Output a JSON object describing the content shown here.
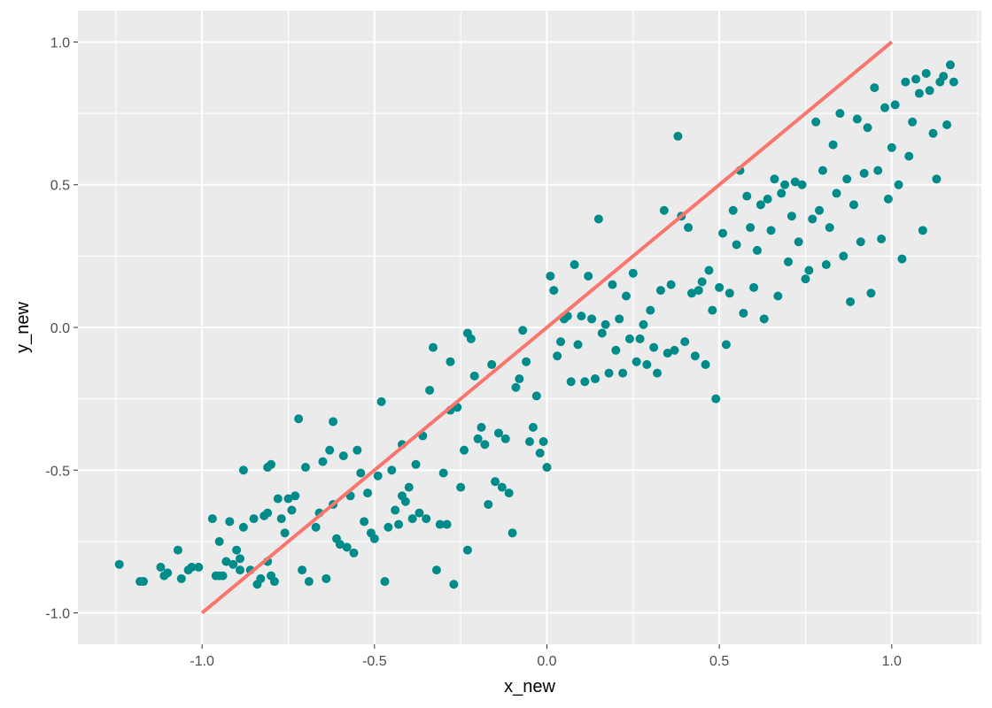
{
  "chart_data": {
    "type": "scatter",
    "xlabel": "x_new",
    "ylabel": "y_new",
    "xlim": [
      -1.36,
      1.26
    ],
    "ylim": [
      -1.11,
      1.11
    ],
    "x_ticks": [
      -1.0,
      -0.5,
      0.0,
      0.5,
      1.0
    ],
    "x_tick_labels": [
      "-1.0",
      "-0.5",
      "0.0",
      "0.5",
      "1.0"
    ],
    "y_ticks": [
      -1.0,
      -0.5,
      0.0,
      0.5,
      1.0
    ],
    "y_tick_labels": [
      "-1.0",
      "-0.5",
      "0.0",
      "0.5",
      "1.0"
    ],
    "grid": true,
    "background": "#ebebeb",
    "grid_color": "#ffffff",
    "point_color": "#008b8b",
    "line_color": "#f8766d",
    "reference_line": {
      "x": [
        -1.0,
        1.0
      ],
      "y": [
        -1.0,
        1.0
      ]
    },
    "points": [
      [
        -1.24,
        -0.83
      ],
      [
        -1.18,
        -0.89
      ],
      [
        -1.17,
        -0.89
      ],
      [
        -1.12,
        -0.84
      ],
      [
        -1.11,
        -0.87
      ],
      [
        -1.1,
        -0.86
      ],
      [
        -1.07,
        -0.78
      ],
      [
        -1.06,
        -0.88
      ],
      [
        -1.04,
        -0.85
      ],
      [
        -1.03,
        -0.84
      ],
      [
        -1.01,
        -0.84
      ],
      [
        -0.97,
        -0.67
      ],
      [
        -0.96,
        -0.87
      ],
      [
        -0.95,
        -0.75
      ],
      [
        -0.95,
        -0.87
      ],
      [
        -0.94,
        -0.87
      ],
      [
        -0.93,
        -0.82
      ],
      [
        -0.92,
        -0.68
      ],
      [
        -0.91,
        -0.83
      ],
      [
        -0.9,
        -0.78
      ],
      [
        -0.89,
        -0.81
      ],
      [
        -0.89,
        -0.85
      ],
      [
        -0.88,
        -0.5
      ],
      [
        -0.88,
        -0.7
      ],
      [
        -0.86,
        -0.85
      ],
      [
        -0.85,
        -0.67
      ],
      [
        -0.84,
        -0.9
      ],
      [
        -0.83,
        -0.88
      ],
      [
        -0.82,
        -0.66
      ],
      [
        -0.81,
        -0.49
      ],
      [
        -0.81,
        -0.65
      ],
      [
        -0.81,
        -0.82
      ],
      [
        -0.8,
        -0.48
      ],
      [
        -0.8,
        -0.87
      ],
      [
        -0.79,
        -0.89
      ],
      [
        -0.78,
        -0.6
      ],
      [
        -0.77,
        -0.67
      ],
      [
        -0.76,
        -0.72
      ],
      [
        -0.75,
        -0.6
      ],
      [
        -0.74,
        -0.64
      ],
      [
        -0.73,
        -0.59
      ],
      [
        -0.72,
        -0.32
      ],
      [
        -0.71,
        -0.85
      ],
      [
        -0.7,
        -0.49
      ],
      [
        -0.69,
        -0.89
      ],
      [
        -0.67,
        -0.7
      ],
      [
        -0.66,
        -0.65
      ],
      [
        -0.65,
        -0.47
      ],
      [
        -0.64,
        -0.88
      ],
      [
        -0.63,
        -0.43
      ],
      [
        -0.62,
        -0.33
      ],
      [
        -0.62,
        -0.62
      ],
      [
        -0.61,
        -0.74
      ],
      [
        -0.6,
        -0.76
      ],
      [
        -0.59,
        -0.45
      ],
      [
        -0.58,
        -0.77
      ],
      [
        -0.57,
        -0.59
      ],
      [
        -0.56,
        -0.79
      ],
      [
        -0.55,
        -0.43
      ],
      [
        -0.54,
        -0.51
      ],
      [
        -0.53,
        -0.68
      ],
      [
        -0.52,
        -0.58
      ],
      [
        -0.51,
        -0.72
      ],
      [
        -0.5,
        -0.74
      ],
      [
        -0.49,
        -0.52
      ],
      [
        -0.48,
        -0.26
      ],
      [
        -0.47,
        -0.89
      ],
      [
        -0.46,
        -0.7
      ],
      [
        -0.45,
        -0.5
      ],
      [
        -0.44,
        -0.64
      ],
      [
        -0.43,
        -0.69
      ],
      [
        -0.42,
        -0.59
      ],
      [
        -0.42,
        -0.41
      ],
      [
        -0.41,
        -0.61
      ],
      [
        -0.4,
        -0.56
      ],
      [
        -0.39,
        -0.67
      ],
      [
        -0.38,
        -0.48
      ],
      [
        -0.37,
        -0.65
      ],
      [
        -0.36,
        -0.38
      ],
      [
        -0.35,
        -0.67
      ],
      [
        -0.34,
        -0.22
      ],
      [
        -0.33,
        -0.07
      ],
      [
        -0.32,
        -0.85
      ],
      [
        -0.31,
        -0.69
      ],
      [
        -0.3,
        -0.51
      ],
      [
        -0.29,
        -0.69
      ],
      [
        -0.28,
        -0.12
      ],
      [
        -0.28,
        -0.29
      ],
      [
        -0.27,
        -0.9
      ],
      [
        -0.26,
        -0.28
      ],
      [
        -0.25,
        -0.56
      ],
      [
        -0.24,
        -0.43
      ],
      [
        -0.23,
        -0.78
      ],
      [
        -0.23,
        -0.02
      ],
      [
        -0.22,
        -0.04
      ],
      [
        -0.21,
        -0.17
      ],
      [
        -0.2,
        -0.39
      ],
      [
        -0.19,
        -0.35
      ],
      [
        -0.18,
        -0.41
      ],
      [
        -0.17,
        -0.62
      ],
      [
        -0.16,
        -0.13
      ],
      [
        -0.15,
        -0.54
      ],
      [
        -0.14,
        -0.37
      ],
      [
        -0.13,
        -0.56
      ],
      [
        -0.12,
        -0.39
      ],
      [
        -0.11,
        -0.58
      ],
      [
        -0.1,
        -0.72
      ],
      [
        -0.09,
        -0.21
      ],
      [
        -0.08,
        -0.18
      ],
      [
        -0.07,
        -0.01
      ],
      [
        -0.06,
        -0.12
      ],
      [
        -0.05,
        -0.4
      ],
      [
        -0.04,
        -0.35
      ],
      [
        -0.03,
        -0.24
      ],
      [
        -0.02,
        -0.44
      ],
      [
        -0.01,
        -0.4
      ],
      [
        0.0,
        -0.49
      ],
      [
        0.01,
        0.18
      ],
      [
        0.02,
        0.13
      ],
      [
        0.03,
        -0.1
      ],
      [
        0.04,
        -0.05
      ],
      [
        0.05,
        0.03
      ],
      [
        0.06,
        0.04
      ],
      [
        0.07,
        -0.19
      ],
      [
        0.08,
        0.22
      ],
      [
        0.09,
        -0.06
      ],
      [
        0.1,
        0.04
      ],
      [
        0.11,
        -0.19
      ],
      [
        0.12,
        0.18
      ],
      [
        0.13,
        0.03
      ],
      [
        0.14,
        -0.18
      ],
      [
        0.15,
        0.38
      ],
      [
        0.16,
        -0.02
      ],
      [
        0.17,
        0.01
      ],
      [
        0.18,
        -0.16
      ],
      [
        0.19,
        0.15
      ],
      [
        0.2,
        -0.08
      ],
      [
        0.21,
        0.03
      ],
      [
        0.22,
        -0.16
      ],
      [
        0.23,
        0.11
      ],
      [
        0.24,
        -0.04
      ],
      [
        0.25,
        0.19
      ],
      [
        0.26,
        -0.12
      ],
      [
        0.27,
        -0.04
      ],
      [
        0.28,
        0.01
      ],
      [
        0.29,
        -0.13
      ],
      [
        0.3,
        0.06
      ],
      [
        0.31,
        -0.07
      ],
      [
        0.32,
        -0.16
      ],
      [
        0.33,
        0.13
      ],
      [
        0.34,
        0.41
      ],
      [
        0.35,
        -0.09
      ],
      [
        0.36,
        0.15
      ],
      [
        0.37,
        -0.08
      ],
      [
        0.38,
        0.67
      ],
      [
        0.39,
        0.39
      ],
      [
        0.4,
        -0.05
      ],
      [
        0.41,
        0.35
      ],
      [
        0.42,
        0.12
      ],
      [
        0.43,
        -0.1
      ],
      [
        0.44,
        0.13
      ],
      [
        0.45,
        0.16
      ],
      [
        0.46,
        -0.13
      ],
      [
        0.47,
        0.2
      ],
      [
        0.48,
        0.06
      ],
      [
        0.49,
        -0.25
      ],
      [
        0.5,
        0.14
      ],
      [
        0.51,
        0.33
      ],
      [
        0.52,
        -0.06
      ],
      [
        0.53,
        0.12
      ],
      [
        0.54,
        0.41
      ],
      [
        0.55,
        0.29
      ],
      [
        0.56,
        0.55
      ],
      [
        0.57,
        0.05
      ],
      [
        0.58,
        0.46
      ],
      [
        0.59,
        0.35
      ],
      [
        0.6,
        0.14
      ],
      [
        0.61,
        0.27
      ],
      [
        0.62,
        0.43
      ],
      [
        0.63,
        0.03
      ],
      [
        0.64,
        0.45
      ],
      [
        0.65,
        0.34
      ],
      [
        0.66,
        0.52
      ],
      [
        0.67,
        0.11
      ],
      [
        0.68,
        0.47
      ],
      [
        0.69,
        0.5
      ],
      [
        0.7,
        0.23
      ],
      [
        0.71,
        0.39
      ],
      [
        0.72,
        0.51
      ],
      [
        0.73,
        0.3
      ],
      [
        0.74,
        0.5
      ],
      [
        0.75,
        0.17
      ],
      [
        0.76,
        0.2
      ],
      [
        0.77,
        0.38
      ],
      [
        0.78,
        0.72
      ],
      [
        0.79,
        0.41
      ],
      [
        0.8,
        0.55
      ],
      [
        0.81,
        0.22
      ],
      [
        0.82,
        0.35
      ],
      [
        0.83,
        0.64
      ],
      [
        0.84,
        0.47
      ],
      [
        0.85,
        0.75
      ],
      [
        0.86,
        0.25
      ],
      [
        0.87,
        0.52
      ],
      [
        0.88,
        0.09
      ],
      [
        0.89,
        0.43
      ],
      [
        0.9,
        0.73
      ],
      [
        0.91,
        0.3
      ],
      [
        0.92,
        0.54
      ],
      [
        0.93,
        0.7
      ],
      [
        0.94,
        0.12
      ],
      [
        0.95,
        0.84
      ],
      [
        0.96,
        0.55
      ],
      [
        0.97,
        0.31
      ],
      [
        0.98,
        0.77
      ],
      [
        0.99,
        0.45
      ],
      [
        1.0,
        0.63
      ],
      [
        1.01,
        0.78
      ],
      [
        1.02,
        0.5
      ],
      [
        1.03,
        0.24
      ],
      [
        1.04,
        0.86
      ],
      [
        1.05,
        0.6
      ],
      [
        1.06,
        0.72
      ],
      [
        1.07,
        0.87
      ],
      [
        1.08,
        0.82
      ],
      [
        1.09,
        0.34
      ],
      [
        1.1,
        0.89
      ],
      [
        1.11,
        0.83
      ],
      [
        1.12,
        0.68
      ],
      [
        1.13,
        0.52
      ],
      [
        1.14,
        0.86
      ],
      [
        1.15,
        0.88
      ],
      [
        1.16,
        0.71
      ],
      [
        1.17,
        0.92
      ],
      [
        1.18,
        0.86
      ]
    ]
  }
}
